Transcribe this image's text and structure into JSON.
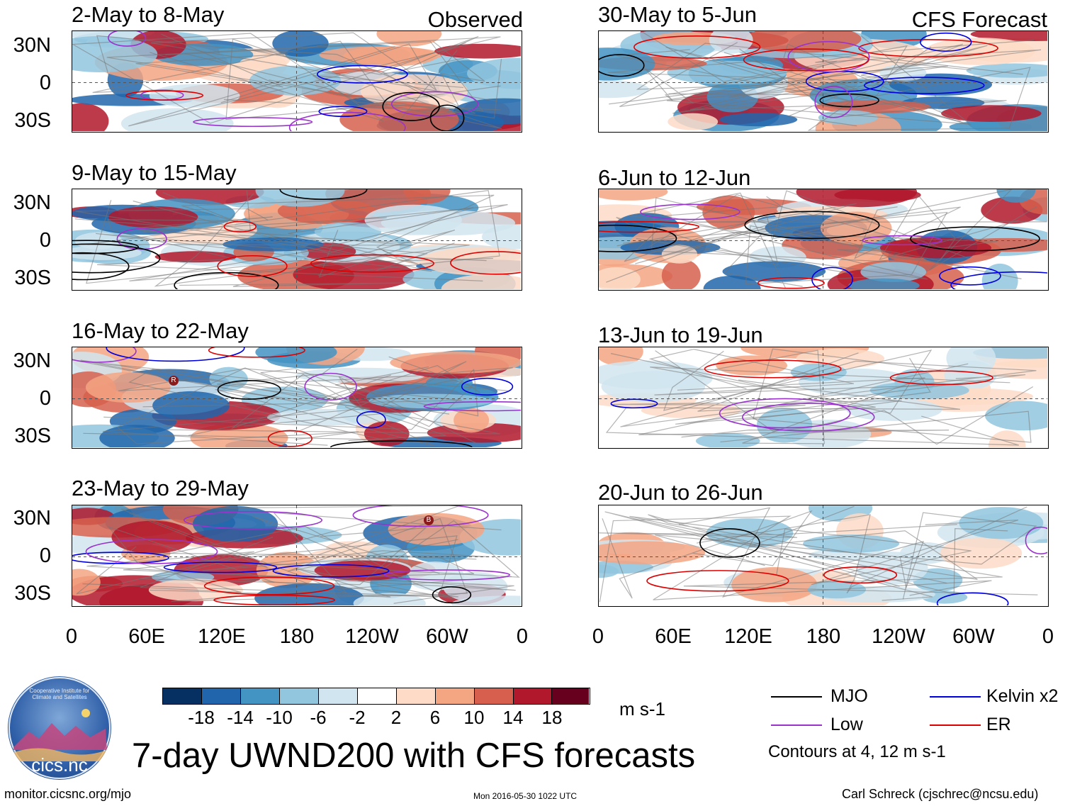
{
  "colors": {
    "mjo": "#000000",
    "low": "#9933cc",
    "kelvin": "#0000dd",
    "er": "#dd0000",
    "equator_line": "#555555",
    "scale": [
      "#053061",
      "#2166ac",
      "#4393c3",
      "#92c5de",
      "#d1e5f0",
      "#ffffff",
      "#fddbc7",
      "#f4a582",
      "#d6604d",
      "#b2182b",
      "#67001f"
    ]
  },
  "left_column": {
    "label": "Observed",
    "panels": [
      {
        "title": "2-May to 8-May"
      },
      {
        "title": "9-May to 15-May"
      },
      {
        "title": "16-May to 22-May"
      },
      {
        "title": "23-May to 29-May"
      }
    ]
  },
  "right_column": {
    "label": "CFS Forecast",
    "panels": [
      {
        "title": "30-May to 5-Jun"
      },
      {
        "title": "6-Jun to 12-Jun"
      },
      {
        "title": "13-Jun to 19-Jun"
      },
      {
        "title": "20-Jun to 26-Jun"
      }
    ]
  },
  "lat_labels": [
    "30N",
    "0",
    "30S"
  ],
  "lon_labels": [
    "0",
    "60E",
    "120E",
    "180",
    "120W",
    "60W",
    "0"
  ],
  "markers": {
    "left_p3": "R",
    "left_p4": "B"
  },
  "colorbar": {
    "ticks": [
      "-18",
      "-14",
      "-10",
      "-6",
      "-2",
      "2",
      "6",
      "10",
      "14",
      "18"
    ],
    "units": "m s-1"
  },
  "legend": {
    "mjo": "MJO",
    "kelvin": "Kelvin x2",
    "low": "Low",
    "er": "ER",
    "note": "Contours at 4, 12 m s-1"
  },
  "logo": {
    "text": "cicsnc",
    "text_dot": "cics.nc",
    "arc_text": "Cooperative Institute for Climate and Satellites"
  },
  "footer": {
    "title": "7-day UWND200 with CFS forecasts",
    "left": "monitor.cicsnc.org/mjo",
    "center": "Mon 2016-05-30 1022 UTC",
    "right": "Carl Schreck (cjschrec@ncsu.edu)"
  }
}
